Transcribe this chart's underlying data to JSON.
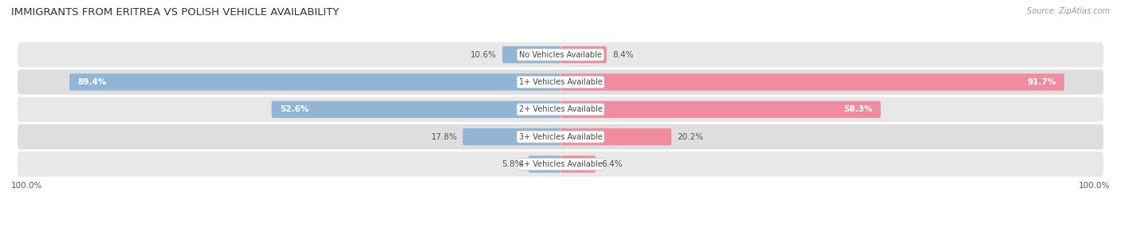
{
  "title": "IMMIGRANTS FROM ERITREA VS POLISH VEHICLE AVAILABILITY",
  "source": "Source: ZipAtlas.com",
  "categories": [
    "No Vehicles Available",
    "1+ Vehicles Available",
    "2+ Vehicles Available",
    "3+ Vehicles Available",
    "4+ Vehicles Available"
  ],
  "eritrea_values": [
    10.6,
    89.4,
    52.6,
    17.8,
    5.8
  ],
  "polish_values": [
    8.4,
    91.7,
    58.3,
    20.2,
    6.4
  ],
  "eritrea_color": "#93b5d5",
  "polish_color": "#f08ca0",
  "row_bg_even": "#e8e8e8",
  "row_bg_odd": "#dedede",
  "row_sep_color": "#ffffff",
  "max_value": 100.0,
  "bar_height": 0.62,
  "figsize": [
    14.06,
    2.86
  ],
  "dpi": 100,
  "title_fontsize": 9.5,
  "label_fontsize": 7.5,
  "category_fontsize": 7.0,
  "legend_fontsize": 7.5,
  "source_fontsize": 7.0,
  "inside_threshold": 30
}
